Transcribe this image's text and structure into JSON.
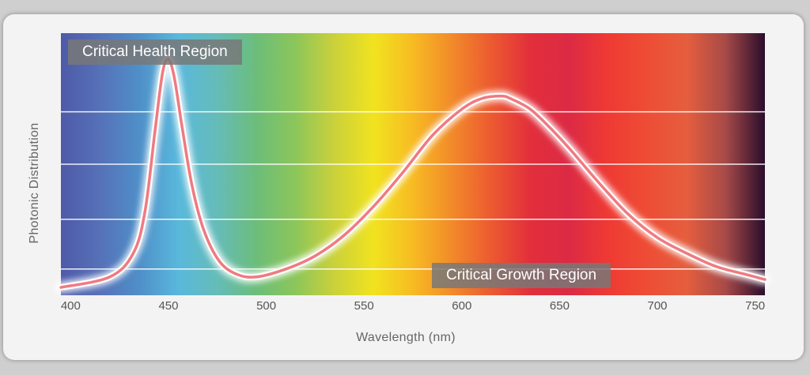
{
  "chart_data": {
    "type": "line",
    "xlabel": "Wavelength (nm)",
    "ylabel": "Photonic Distribution",
    "xlim": [
      395,
      755
    ],
    "ylim": [
      0,
      1
    ],
    "x_ticks": [
      "400",
      "450",
      "500",
      "550",
      "600",
      "650",
      "700",
      "750"
    ],
    "x_tick_values": [
      400,
      450,
      500,
      550,
      600,
      650,
      700,
      750
    ],
    "grid": "horizontal",
    "background": "visible spectrum gradient",
    "line_color": "#f07a80",
    "annotations": [
      "Critical Health Region",
      "Critical Growth Region"
    ],
    "series": [
      {
        "x": [
          395,
          420,
          432,
          438,
          443,
          447,
          450,
          453,
          457,
          462,
          468,
          476,
          485,
          495,
          510,
          525,
          540,
          555,
          570,
          585,
          600,
          610,
          620,
          625,
          635,
          645,
          655,
          670,
          685,
          700,
          715,
          730,
          745,
          755
        ],
        "y": [
          0.03,
          0.07,
          0.16,
          0.32,
          0.62,
          0.85,
          0.9,
          0.83,
          0.64,
          0.42,
          0.25,
          0.13,
          0.08,
          0.07,
          0.1,
          0.15,
          0.23,
          0.34,
          0.47,
          0.61,
          0.71,
          0.75,
          0.76,
          0.75,
          0.71,
          0.64,
          0.56,
          0.43,
          0.31,
          0.22,
          0.16,
          0.11,
          0.08,
          0.06
        ]
      }
    ]
  },
  "colors": {
    "spectrum_stops": [
      "#4e5aa8",
      "#5671b8",
      "#4f8fc8",
      "#59b8dc",
      "#65bcb8",
      "#6cbd7a",
      "#8cc65a",
      "#cbd13a",
      "#f1e31f",
      "#f7bb23",
      "#f28a2a",
      "#ec5a30",
      "#e22f3b",
      "#dc2a44",
      "#ef3a33",
      "#ee4d35",
      "#e55e3e",
      "#a64a48",
      "#2a0d2c"
    ],
    "curve": "#f07a80",
    "label_box": "#7a7a7a"
  }
}
